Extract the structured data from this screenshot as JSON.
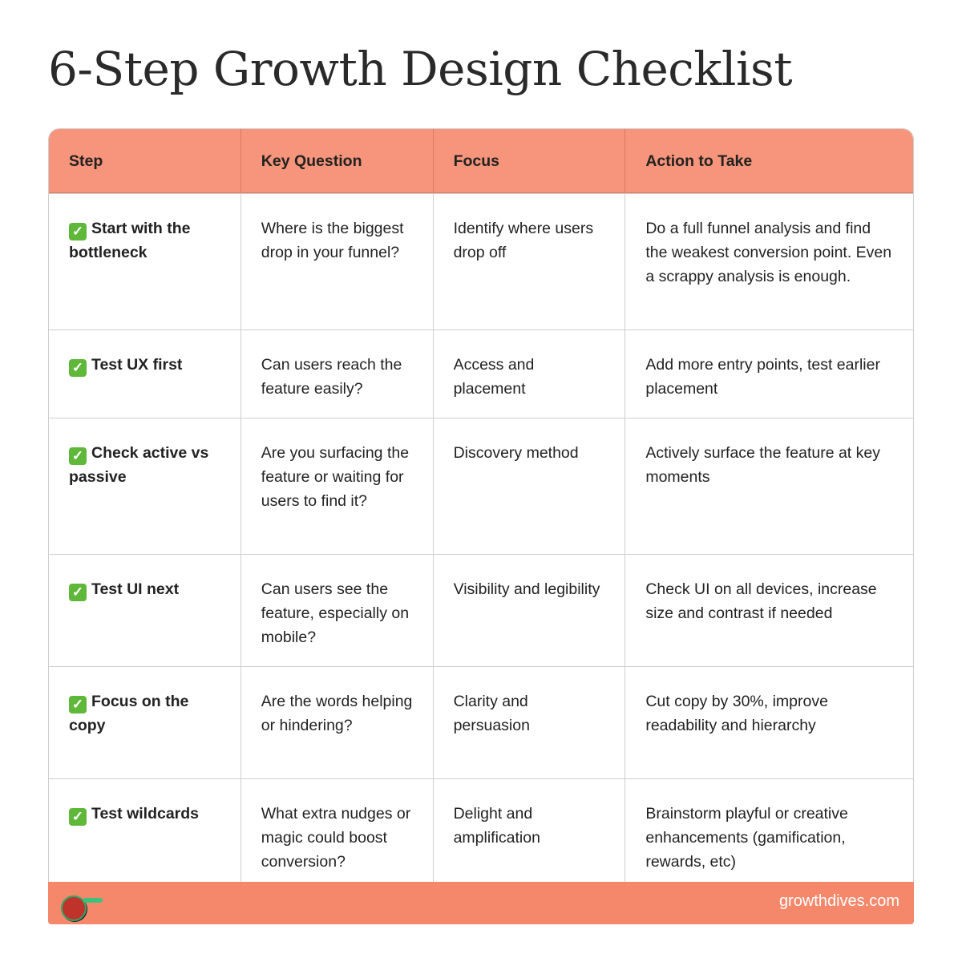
{
  "title": "6-Step Growth Design Checklist",
  "headers": [
    "Step",
    "Key Question",
    "Focus",
    "Action to Take"
  ],
  "rows": [
    {
      "step": "Start with the bottleneck",
      "question": "Where is the biggest drop in your funnel?",
      "focus": "Identify where users drop off",
      "action": "Do a full funnel analysis and find the weakest conversion point. Even a scrappy analysis is enough."
    },
    {
      "step": "Test UX first",
      "question": "Can users reach the feature easily?",
      "focus": "Access and placement",
      "action": "Add more entry points, test earlier placement"
    },
    {
      "step": "Check active vs passive",
      "question": "Are you surfacing the feature or waiting for users to find it?",
      "focus": "Discovery method",
      "action": "Actively surface the feature at key moments"
    },
    {
      "step": "Test UI next",
      "question": "Can users see the feature, especially on mobile?",
      "focus": "Visibility and legibility",
      "action": "Check UI on all devices, increase size and contrast if needed"
    },
    {
      "step": "Focus on the copy",
      "question": "Are the words helping or hindering?",
      "focus": "Clarity and persuasion",
      "action": "Cut copy by 30%, improve readability and hierarchy"
    },
    {
      "step": "Test wildcards",
      "question": "What extra nudges or magic could boost conversion?",
      "focus": "Delight and amplification",
      "action": "Brainstorm playful or creative enhancements (gamification, rewards, etc)"
    }
  ],
  "check_icon": "white-check-mark-emoji",
  "footer": {
    "site": "growthdives.com"
  },
  "colors": {
    "header": "#f6957b",
    "footer": "#f5876a",
    "check": "#5fb83a"
  }
}
